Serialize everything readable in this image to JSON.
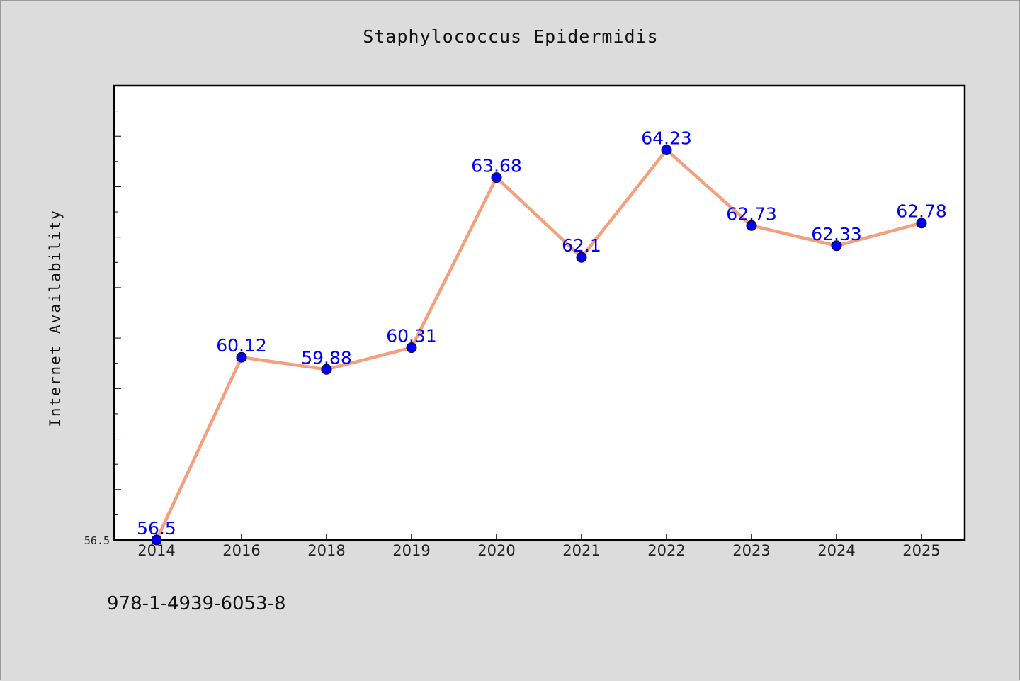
{
  "chart_data": {
    "type": "line",
    "title": "Staphylococcus Epidermidis",
    "xlabel": "",
    "ylabel": "Internet Availability",
    "categories": [
      "2014",
      "2016",
      "2018",
      "2019",
      "2020",
      "2021",
      "2022",
      "2023",
      "2024",
      "2025"
    ],
    "series": [
      {
        "values": [
          56.5,
          60.12,
          59.88,
          60.31,
          63.68,
          62.1,
          64.23,
          62.73,
          62.33,
          62.78
        ],
        "data_labels": [
          "56.5",
          "60.12",
          "59.88",
          "60.31",
          "63.68",
          "62.1",
          "64.23",
          "62.73",
          "62.33",
          "62.78"
        ]
      }
    ],
    "ylim": [
      56.5,
      65.5
    ],
    "yticks": [
      {
        "value": 56.5,
        "label": "56.5"
      }
    ],
    "grid": false,
    "legend": "none",
    "colors": {
      "line": "#f4a07e",
      "marker": "#0000ee",
      "label": "#0000ee",
      "plot_background": "#ffffff",
      "figure_background": "#dcdcdc"
    }
  },
  "footer": {
    "code": "978-1-4939-6053-8"
  }
}
